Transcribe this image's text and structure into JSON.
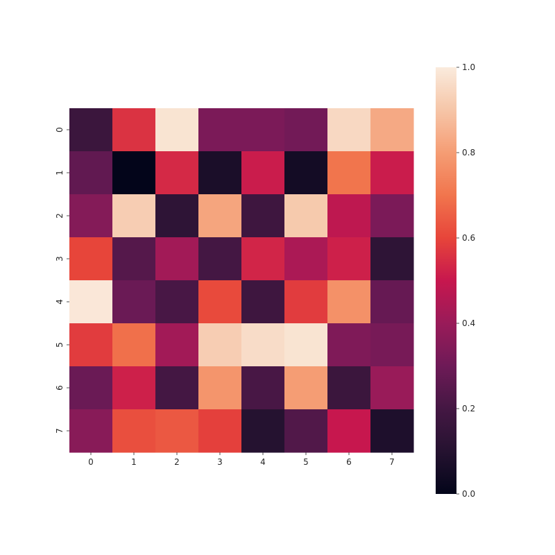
{
  "chart_data": {
    "type": "heatmap",
    "title": "",
    "xlabel": "",
    "ylabel": "",
    "x_categories": [
      "0",
      "1",
      "2",
      "3",
      "4",
      "5",
      "6",
      "7"
    ],
    "y_categories": [
      "0",
      "1",
      "2",
      "3",
      "4",
      "5",
      "6",
      "7"
    ],
    "values": [
      [
        0.17,
        0.56,
        0.98,
        0.33,
        0.33,
        0.31,
        0.95,
        0.83
      ],
      [
        0.27,
        0.0,
        0.54,
        0.07,
        0.51,
        0.05,
        0.7,
        0.51
      ],
      [
        0.35,
        0.92,
        0.13,
        0.82,
        0.18,
        0.91,
        0.48,
        0.33
      ],
      [
        0.6,
        0.24,
        0.42,
        0.2,
        0.53,
        0.44,
        0.52,
        0.13
      ],
      [
        0.99,
        0.29,
        0.21,
        0.61,
        0.18,
        0.58,
        0.77,
        0.28
      ],
      [
        0.58,
        0.69,
        0.42,
        0.92,
        0.96,
        0.98,
        0.34,
        0.32
      ],
      [
        0.29,
        0.52,
        0.2,
        0.78,
        0.21,
        0.8,
        0.17,
        0.4
      ],
      [
        0.36,
        0.62,
        0.64,
        0.59,
        0.1,
        0.23,
        0.5,
        0.08
      ]
    ],
    "colorbar": {
      "min": 0.0,
      "max": 1.0,
      "ticks": [
        0.0,
        0.2,
        0.4,
        0.6,
        0.8,
        1.0
      ],
      "tick_labels": [
        "0.0",
        "0.2",
        "0.4",
        "0.6",
        "0.8",
        "1.0"
      ],
      "colormap": "rocket"
    },
    "grid": false,
    "legend": "colorbar-right"
  }
}
